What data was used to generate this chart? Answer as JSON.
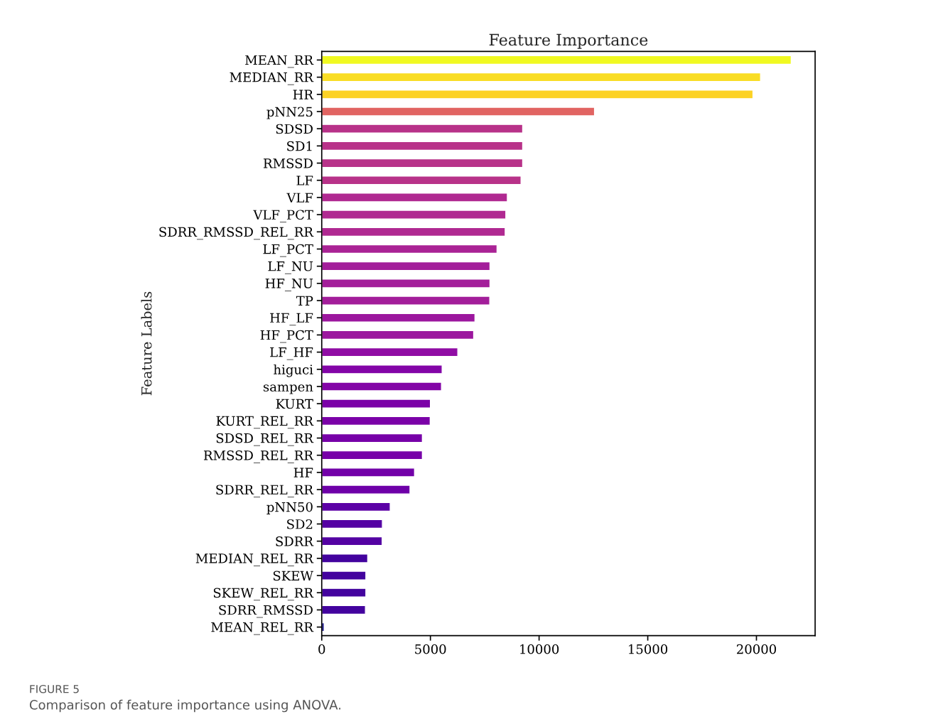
{
  "chart_data": {
    "type": "bar",
    "orientation": "horizontal",
    "title": "Feature Importance",
    "ylabel": "Feature Labels",
    "categories": [
      "MEAN_RR",
      "MEDIAN_RR",
      "HR",
      "pNN25",
      "SDSD",
      "SD1",
      "RMSSD",
      "LF",
      "VLF",
      "VLF_PCT",
      "SDRR_RMSSD_REL_RR",
      "LF_PCT",
      "LF_NU",
      "HF_NU",
      "TP",
      "HF_LF",
      "HF_PCT",
      "LF_HF",
      "higuci",
      "sampen",
      "KURT",
      "KURT_REL_RR",
      "SDSD_REL_RR",
      "RMSSD_REL_RR",
      "HF",
      "SDRR_REL_RR",
      "pNN50",
      "SD2",
      "SDRR",
      "MEDIAN_REL_RR",
      "SKEW",
      "SKEW_REL_RR",
      "SDRR_RMSSD",
      "MEAN_REL_RR"
    ],
    "values": [
      21600,
      20190,
      19840,
      12550,
      9245,
      9245,
      9245,
      9170,
      8540,
      8470,
      8440,
      8065,
      7740,
      7740,
      7730,
      7050,
      6990,
      6260,
      5540,
      5510,
      5000,
      4990,
      4630,
      4630,
      4270,
      4060,
      3150,
      2790,
      2780,
      2115,
      2030,
      2030,
      2010,
      110
    ],
    "colors": [
      "#f0f921",
      "#f9dd25",
      "#fcd225",
      "#e16462",
      "#b83289",
      "#b83289",
      "#b83289",
      "#b83289",
      "#b02991",
      "#b02991",
      "#b02991",
      "#aa2395",
      "#a31e9a",
      "#a31e9a",
      "#a31e9a",
      "#9c179e",
      "#9c179e",
      "#900da4",
      "#8305a7",
      "#8305a7",
      "#7b02a8",
      "#7b02a8",
      "#7701a8",
      "#7701a8",
      "#7201a8",
      "#6e00a8",
      "#5c01a6",
      "#5402a3",
      "#5402a3",
      "#43039e",
      "#43039e",
      "#43039e",
      "#43039e",
      "#0d0887"
    ],
    "xlim": [
      0,
      22700
    ],
    "xticks": [
      0,
      5000,
      10000,
      15000,
      20000
    ],
    "grid": false,
    "legend": false,
    "annotations": [
      "FIGURE 5",
      "Comparison of feature importance using ANOVA."
    ]
  }
}
